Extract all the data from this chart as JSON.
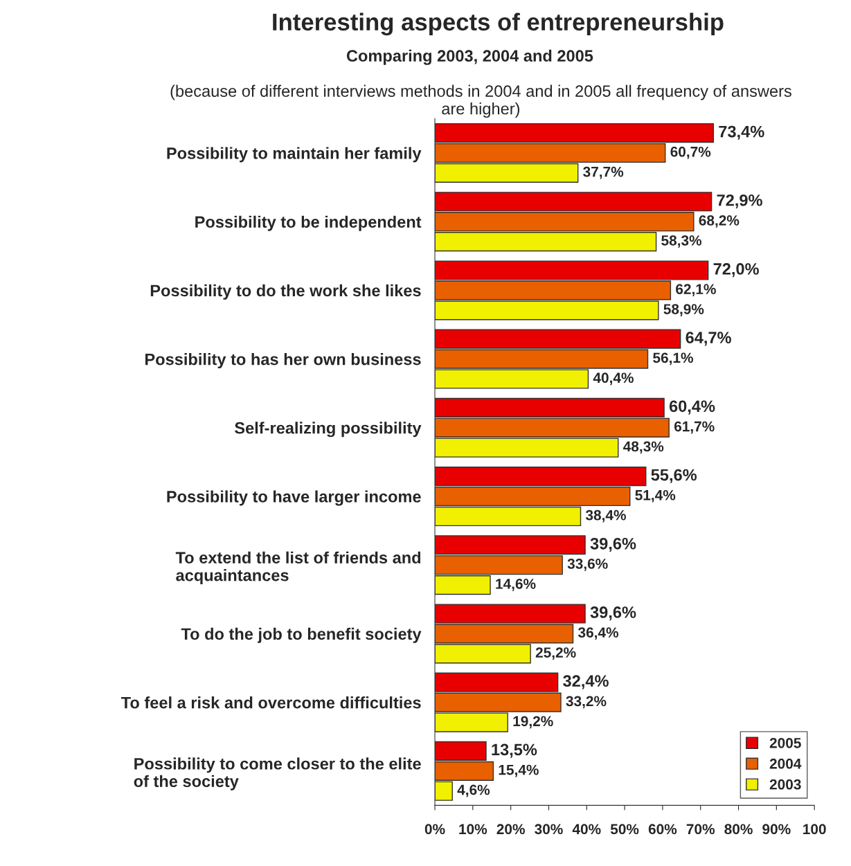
{
  "chart_data": {
    "type": "bar",
    "orientation": "horizontal",
    "title": "Interesting aspects of entrepreneurship",
    "subtitle": "Comparing 2003, 2004 and 2005",
    "annotations": [
      "(because of different interviews methods in 2004 and in 2005 all frequency of answers are higher)"
    ],
    "categories": [
      "Possibility to maintain her family",
      "Possibility to be independent",
      "Possibility to do the work she likes",
      "Possibility to has her own business",
      "Self-realizing possibility",
      "Possibility to have larger income",
      "To extend the list of friends and\nacquaintances",
      "To do the job to benefit society",
      "To feel a risk and overcome difficulties",
      "Possibility to come closer to the elite\nof the society"
    ],
    "series": [
      {
        "name": "2005",
        "color": "#e80000",
        "values": [
          73.4,
          72.9,
          72.0,
          64.7,
          60.4,
          55.6,
          39.6,
          39.6,
          32.4,
          13.5
        ],
        "value_labels": [
          "73,4%",
          "72,9%",
          "72,0%",
          "64,7%",
          "60,4%",
          "55,6%",
          "39,6%",
          "39,6%",
          "32,4%",
          "13,5%"
        ]
      },
      {
        "name": "2004",
        "color": "#e86000",
        "values": [
          60.7,
          68.2,
          62.1,
          56.1,
          61.7,
          51.4,
          33.6,
          36.4,
          33.2,
          15.4
        ],
        "value_labels": [
          "60,7%",
          "68,2%",
          "62,1%",
          "56,1%",
          "61,7%",
          "51,4%",
          "33,6%",
          "36,4%",
          "33,2%",
          "15,4%"
        ]
      },
      {
        "name": "2003",
        "color": "#f0f000",
        "values": [
          37.7,
          58.3,
          58.9,
          40.4,
          48.3,
          38.4,
          14.6,
          25.2,
          19.2,
          4.6
        ],
        "value_labels": [
          "37,7%",
          "58,3%",
          "58,9%",
          "40,4%",
          "48,3%",
          "38,4%",
          "14,6%",
          "25,2%",
          "19,2%",
          "4,6%"
        ]
      }
    ],
    "xlim": [
      0,
      100
    ],
    "xticks": [
      {
        "value": 0,
        "label": "0%"
      },
      {
        "value": 10,
        "label": "10%"
      },
      {
        "value": 20,
        "label": "20%"
      },
      {
        "value": 30,
        "label": "30%"
      },
      {
        "value": 40,
        "label": "40%"
      },
      {
        "value": 50,
        "label": "50%"
      },
      {
        "value": 60,
        "label": "60%"
      },
      {
        "value": 70,
        "label": "70%"
      },
      {
        "value": 80,
        "label": "80%"
      },
      {
        "value": 90,
        "label": "90%"
      },
      {
        "value": 100,
        "label": "100"
      }
    ],
    "grid": false,
    "legend": "bottom right"
  }
}
